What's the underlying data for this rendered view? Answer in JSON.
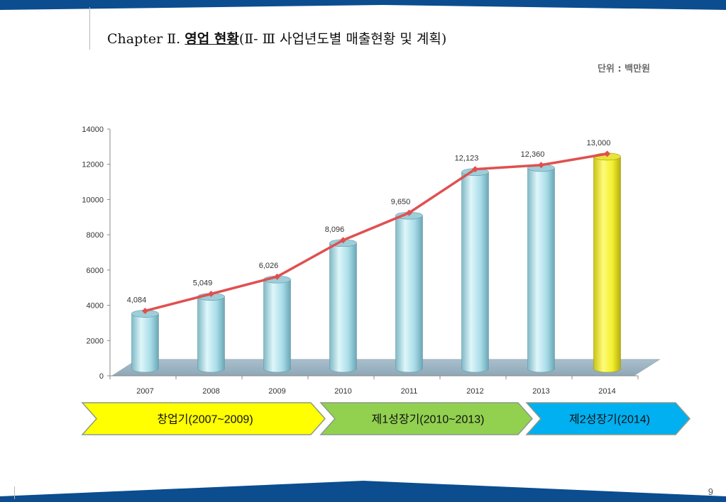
{
  "slide": {
    "title_prefix": "Chapter Ⅱ. ",
    "title_highlight": "영업 현황",
    "title_suffix": "(Ⅱ- Ⅲ 사업년도별 매출현황 및 계획)",
    "unit": "단위 : 백만원",
    "page_number": "9"
  },
  "theme": {
    "band_blue": "#0b4d8f",
    "bar_color": "#b8e6ee",
    "highlight_bar_color": "#f2f03a",
    "line_color": "#e05050",
    "floor_color": "#a3bac7"
  },
  "chart_data": {
    "type": "bar",
    "categories": [
      "2007",
      "2008",
      "2009",
      "2010",
      "2011",
      "2012",
      "2013",
      "2014"
    ],
    "ylim": [
      0,
      14000
    ],
    "yticks": [
      "0",
      "2000",
      "4000",
      "6000",
      "8000",
      "10000",
      "12000",
      "14000"
    ],
    "series": [
      {
        "type": "bar",
        "values": [
          4084,
          5049,
          6026,
          8096,
          9650,
          12123,
          12360,
          13000
        ]
      },
      {
        "type": "line",
        "values": [
          4084,
          5049,
          6026,
          8096,
          9650,
          12123,
          12360,
          13000
        ]
      }
    ],
    "data_labels": [
      "4,084",
      "5,049",
      "6,026",
      "8,096",
      "9,650",
      "12,123",
      "12,360",
      "13,000"
    ],
    "highlighted_category": "2014",
    "grid": false
  },
  "phases": [
    {
      "label": "창업기(2007~2009)",
      "color": "#ffff00"
    },
    {
      "label": "제1성장기(2010~2013)",
      "color": "#92d050"
    },
    {
      "label": "제2성장기(2014)",
      "color": "#00b0f0"
    }
  ]
}
